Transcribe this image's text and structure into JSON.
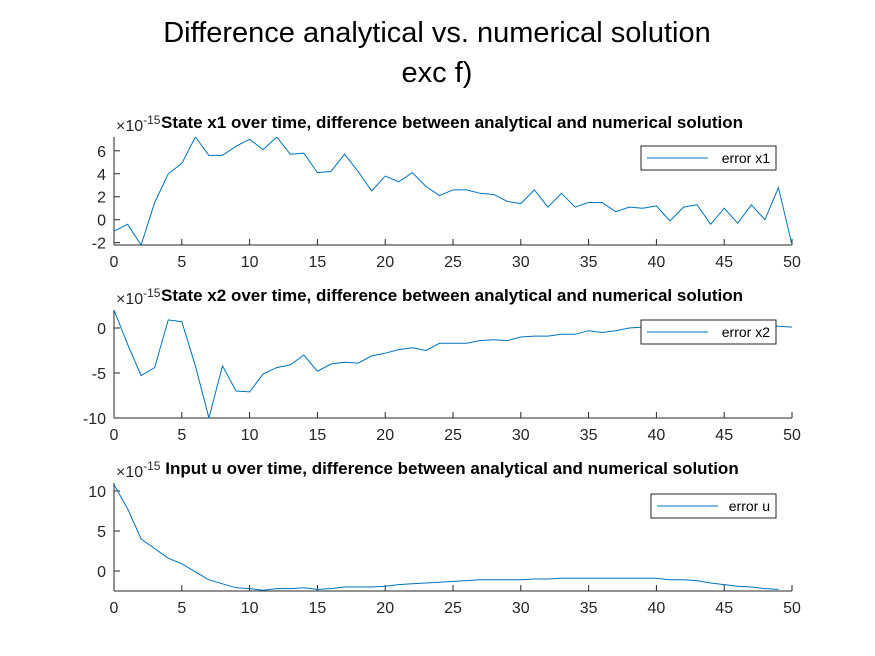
{
  "figure": {
    "title_line1": "Difference analytical vs. numerical solution",
    "title_line2": "exc f)"
  },
  "chart_data": [
    {
      "type": "line",
      "title": "State x1 over time, difference between analytical  and  numerical solution",
      "exponent_label": "×10",
      "exponent": "-15",
      "legend": {
        "entry": "error x1",
        "placement": "top-right"
      },
      "xlim": [
        0,
        50
      ],
      "ylim": [
        -2.2,
        7.2
      ],
      "xticks": [
        "0",
        "5",
        "10",
        "15",
        "20",
        "25",
        "30",
        "35",
        "40",
        "45",
        "50"
      ],
      "yticks": [
        "-2",
        "0",
        "2",
        "4",
        "6"
      ],
      "ytick_values": [
        -2,
        0,
        2,
        4,
        6
      ],
      "color": "#0072BD",
      "series": [
        {
          "name": "error x1",
          "x": [
            0,
            1,
            2,
            3,
            4,
            5,
            6,
            7,
            8,
            9,
            10,
            11,
            12,
            13,
            14,
            15,
            16,
            17,
            18,
            19,
            20,
            21,
            22,
            23,
            24,
            25,
            26,
            27,
            28,
            29,
            30,
            31,
            32,
            33,
            34,
            35,
            36,
            37,
            38,
            39,
            40,
            41,
            42,
            43,
            44,
            45,
            46,
            47,
            48,
            49,
            50
          ],
          "y": [
            -1.0,
            -0.4,
            -2.2,
            1.5,
            4.0,
            4.9,
            7.2,
            5.6,
            5.6,
            6.4,
            7.0,
            6.1,
            7.2,
            5.7,
            5.8,
            4.1,
            4.2,
            5.7,
            4.2,
            2.5,
            3.8,
            3.3,
            4.1,
            2.9,
            2.1,
            2.6,
            2.6,
            2.3,
            2.2,
            1.6,
            1.4,
            2.6,
            1.1,
            2.3,
            1.1,
            1.5,
            1.5,
            0.7,
            1.1,
            1.0,
            1.2,
            -0.1,
            1.1,
            1.3,
            -0.4,
            1.0,
            -0.3,
            1.3,
            0.0,
            2.8,
            -2.2
          ]
        }
      ]
    },
    {
      "type": "line",
      "title": "State x2 over time, difference between analytical  and numerical solution",
      "exponent_label": "×10",
      "exponent": "-15",
      "legend": {
        "entry": "error x2",
        "placement": "top-right"
      },
      "xlim": [
        0,
        50
      ],
      "ylim": [
        -10,
        2
      ],
      "xticks": [
        "0",
        "5",
        "10",
        "15",
        "20",
        "25",
        "30",
        "35",
        "40",
        "45",
        "50"
      ],
      "yticks": [
        "-10",
        "-5",
        "0"
      ],
      "ytick_values": [
        -10,
        -5,
        0
      ],
      "color": "#0072BD",
      "series": [
        {
          "name": "error x2",
          "x": [
            0,
            1,
            2,
            3,
            4,
            5,
            6,
            7,
            8,
            9,
            10,
            11,
            12,
            13,
            14,
            15,
            16,
            17,
            18,
            19,
            20,
            21,
            22,
            23,
            24,
            25,
            26,
            27,
            28,
            29,
            30,
            31,
            32,
            33,
            34,
            35,
            36,
            37,
            38,
            39,
            40,
            41,
            42,
            43,
            44,
            45,
            46,
            47,
            48,
            49,
            50
          ],
          "y": [
            2.0,
            -1.8,
            -5.3,
            -4.4,
            0.9,
            0.7,
            -4.2,
            -10.0,
            -4.2,
            -7.0,
            -7.1,
            -5.1,
            -4.4,
            -4.1,
            -3.0,
            -4.8,
            -4.0,
            -3.8,
            -3.9,
            -3.1,
            -2.8,
            -2.4,
            -2.2,
            -2.5,
            -1.7,
            -1.7,
            -1.7,
            -1.4,
            -1.3,
            -1.4,
            -1.0,
            -0.9,
            -0.9,
            -0.7,
            -0.7,
            -0.3,
            -0.5,
            -0.3,
            0.0,
            0.1,
            0.2,
            0.4,
            0.3,
            0.5,
            0.4,
            0.5,
            0.6,
            0.5,
            0.4,
            0.2,
            0.1
          ]
        }
      ]
    },
    {
      "type": "line",
      "title": "Input u over time, difference between analytical and  numerical solution",
      "exponent_label": "×10",
      "exponent": "-15",
      "legend": {
        "entry": "error u",
        "placement": "top-right"
      },
      "xlim": [
        0,
        50
      ],
      "ylim": [
        -2.5,
        11
      ],
      "xticks": [
        "0",
        "5",
        "10",
        "15",
        "20",
        "25",
        "30",
        "35",
        "40",
        "45",
        "50"
      ],
      "yticks": [
        "0",
        "5",
        "10"
      ],
      "ytick_values": [
        0,
        5,
        10
      ],
      "color": "#0072BD",
      "series": [
        {
          "name": "error u",
          "x": [
            0,
            1,
            2,
            3,
            4,
            5,
            6,
            7,
            8,
            9,
            10,
            11,
            12,
            13,
            14,
            15,
            16,
            17,
            18,
            19,
            20,
            21,
            22,
            23,
            24,
            25,
            26,
            27,
            28,
            29,
            30,
            31,
            32,
            33,
            34,
            35,
            36,
            37,
            38,
            39,
            40,
            41,
            42,
            43,
            44,
            45,
            46,
            47,
            48,
            49
          ],
          "y": [
            10.8,
            7.8,
            4.0,
            2.8,
            1.6,
            0.9,
            -0.1,
            -1.1,
            -1.6,
            -2.1,
            -2.2,
            -2.4,
            -2.2,
            -2.2,
            -2.1,
            -2.3,
            -2.2,
            -2.0,
            -2.0,
            -2.0,
            -1.9,
            -1.7,
            -1.6,
            -1.5,
            -1.4,
            -1.3,
            -1.2,
            -1.1,
            -1.1,
            -1.1,
            -1.1,
            -1.0,
            -1.0,
            -0.9,
            -0.9,
            -0.9,
            -0.9,
            -0.9,
            -0.9,
            -0.9,
            -0.9,
            -1.1,
            -1.1,
            -1.2,
            -1.5,
            -1.7,
            -1.9,
            -2.0,
            -2.2,
            -2.3
          ]
        }
      ]
    }
  ]
}
